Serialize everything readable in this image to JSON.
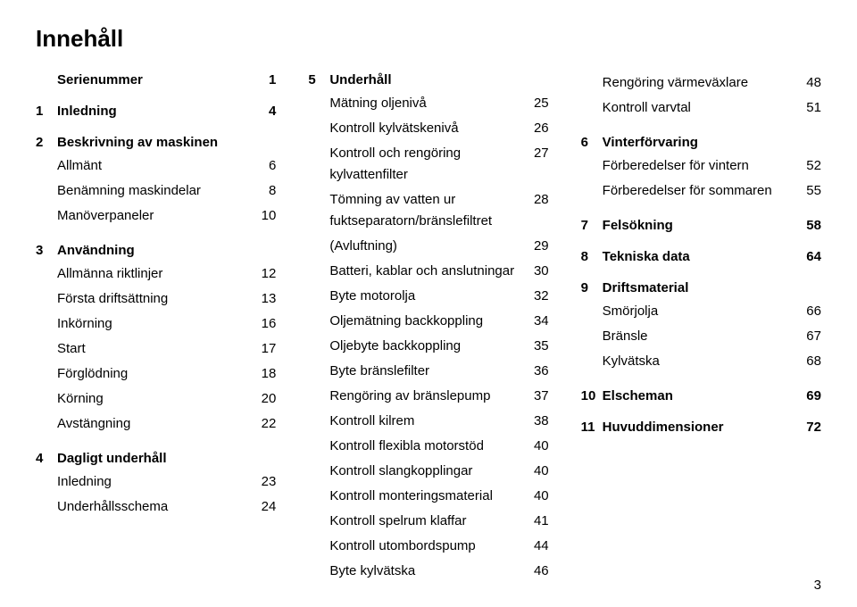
{
  "title": "Innehåll",
  "pageNumber": "3",
  "col1": {
    "serienummer": {
      "num": "",
      "name": "Serienummer",
      "page": "1"
    },
    "s1": {
      "num": "1",
      "name": "Inledning",
      "page": "4"
    },
    "s2": {
      "num": "2",
      "name": "Beskrivning av maskinen",
      "page": ""
    },
    "s2_items": [
      {
        "name": "Allmänt",
        "page": "6"
      },
      {
        "name": "Benämning maskindelar",
        "page": "8"
      },
      {
        "name": "Manöverpaneler",
        "page": "10"
      }
    ],
    "s3": {
      "num": "3",
      "name": "Användning",
      "page": ""
    },
    "s3_items": [
      {
        "name": "Allmänna riktlinjer",
        "page": "12"
      },
      {
        "name": "Första driftsättning",
        "page": "13"
      },
      {
        "name": "Inkörning",
        "page": "16"
      },
      {
        "name": "Start",
        "page": "17"
      },
      {
        "name": "Förglödning",
        "page": "18"
      },
      {
        "name": "Körning",
        "page": "20"
      },
      {
        "name": "Avstängning",
        "page": "22"
      }
    ],
    "s4": {
      "num": "4",
      "name": "Dagligt underhåll",
      "page": ""
    },
    "s4_items": [
      {
        "name": "Inledning",
        "page": "23"
      },
      {
        "name": "Underhållsschema",
        "page": "24"
      }
    ]
  },
  "col2": {
    "s5": {
      "num": "5",
      "name": "Underhåll",
      "page": ""
    },
    "s5_items": [
      {
        "name": "Mätning oljenivå",
        "page": "25"
      },
      {
        "name": "Kontroll kylvätskenivå",
        "page": "26"
      },
      {
        "name": "Kontroll och rengöring kylvattenfilter",
        "page": "27"
      },
      {
        "name": "Tömning av vatten ur fuktseparatorn/bränslefiltret",
        "page": "28"
      },
      {
        "name": "(Avluftning)",
        "page": "29"
      },
      {
        "name": "Batteri, kablar och anslutningar",
        "page": "30"
      },
      {
        "name": "Byte motorolja",
        "page": "32"
      },
      {
        "name": "Oljemätning backkoppling",
        "page": "34"
      },
      {
        "name": "Oljebyte backkoppling",
        "page": "35"
      },
      {
        "name": "Byte bränslefilter",
        "page": "36"
      },
      {
        "name": "Rengöring av bränslepump",
        "page": "37"
      },
      {
        "name": "Kontroll kilrem",
        "page": "38"
      },
      {
        "name": "Kontroll flexibla motorstöd",
        "page": "40"
      },
      {
        "name": "Kontroll slangkopplingar",
        "page": "40"
      },
      {
        "name": "Kontroll monteringsmaterial",
        "page": "40"
      },
      {
        "name": "Kontroll spelrum klaffar",
        "page": "41"
      },
      {
        "name": "Kontroll utombordspump",
        "page": "44"
      },
      {
        "name": "Byte kylvätska",
        "page": "46"
      }
    ]
  },
  "col3": {
    "top_items": [
      {
        "name": "Rengöring värmeväxlare",
        "page": "48"
      },
      {
        "name": "Kontroll varvtal",
        "page": "51"
      }
    ],
    "s6": {
      "num": "6",
      "name": "Vinterförvaring",
      "page": ""
    },
    "s6_items": [
      {
        "name": "Förberedelser för vintern",
        "page": "52"
      },
      {
        "name": "Förberedelser för sommaren",
        "page": "55"
      }
    ],
    "s7": {
      "num": "7",
      "name": "Felsökning",
      "page": "58"
    },
    "s8": {
      "num": "8",
      "name": "Tekniska data",
      "page": "64"
    },
    "s9": {
      "num": "9",
      "name": "Driftsmaterial",
      "page": ""
    },
    "s9_items": [
      {
        "name": "Smörjolja",
        "page": "66"
      },
      {
        "name": "Bränsle",
        "page": "67"
      },
      {
        "name": "Kylvätska",
        "page": "68"
      }
    ],
    "s10": {
      "num": "10",
      "name": "Elscheman",
      "page": "69"
    },
    "s11": {
      "num": "11",
      "name": "Huvuddimensioner",
      "page": "72"
    }
  }
}
